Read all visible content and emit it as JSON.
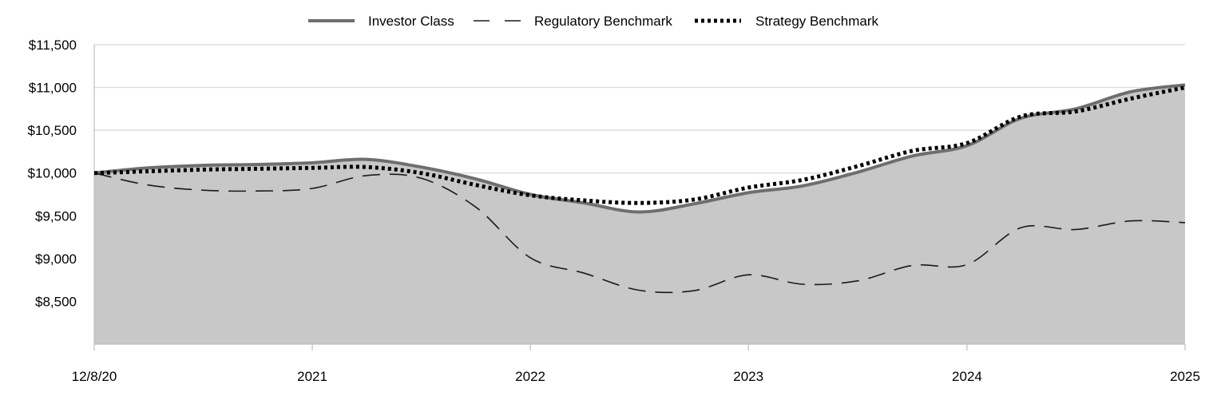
{
  "chart_data": {
    "type": "area",
    "legend_position": "top-center",
    "grid": true,
    "ylim": [
      8000,
      11500
    ],
    "y_ticks": [
      8500,
      9000,
      9500,
      10000,
      10500,
      11000,
      11500
    ],
    "y_tick_labels": [
      "$8,500",
      "$9,000",
      "$9,500",
      "$10,000",
      "$10,500",
      "$11,000",
      "$11,500"
    ],
    "x_ticks": [
      "2020-12-08",
      "2021-12-08",
      "2022-12-08",
      "2023-12-08",
      "2024-12-08",
      "2025-12-08"
    ],
    "x_tick_labels": [
      "12/8/20",
      "2021",
      "2022",
      "2023",
      "2024",
      "2025"
    ],
    "x": [
      "2020-12-08",
      "2021-03-08",
      "2021-06-08",
      "2021-09-08",
      "2021-12-08",
      "2022-03-08",
      "2022-06-08",
      "2022-09-08",
      "2022-12-08",
      "2023-03-08",
      "2023-06-08",
      "2023-09-08",
      "2023-12-08",
      "2024-03-08",
      "2024-06-08",
      "2024-09-08",
      "2024-12-08",
      "2025-03-08",
      "2025-06-08",
      "2025-09-08",
      "2025-12-08"
    ],
    "series": [
      {
        "name": "Investor Class",
        "style": "solid-area",
        "color": "#6e6e6e",
        "values": [
          10000,
          10060,
          10090,
          10100,
          10120,
          10160,
          10070,
          9930,
          9750,
          9650,
          9545,
          9640,
          9770,
          9850,
          10010,
          10200,
          10320,
          10640,
          10750,
          10950,
          11030
        ]
      },
      {
        "name": "Regulatory Benchmark",
        "style": "dashed",
        "color": "#1a1a1a",
        "values": [
          10000,
          9860,
          9800,
          9790,
          9820,
          9970,
          9940,
          9600,
          9010,
          8830,
          8630,
          8625,
          8810,
          8700,
          8740,
          8920,
          8930,
          9360,
          9340,
          9440,
          9420
        ]
      },
      {
        "name": "Strategy Benchmark",
        "style": "dotted",
        "color": "#000000",
        "values": [
          10000,
          10020,
          10040,
          10050,
          10060,
          10070,
          10000,
          9860,
          9740,
          9680,
          9650,
          9690,
          9830,
          9920,
          10080,
          10260,
          10350,
          10660,
          10720,
          10870,
          11000
        ]
      }
    ]
  }
}
